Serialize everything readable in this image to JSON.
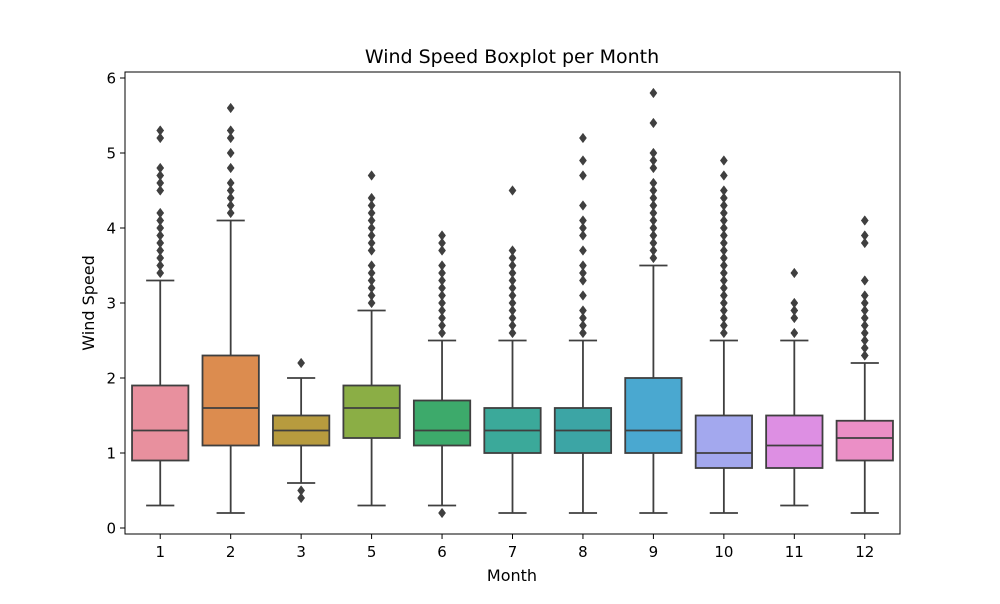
{
  "chart_data": {
    "type": "boxplot",
    "title": "Wind Speed Boxplot per Month",
    "xlabel": "Month",
    "ylabel": "Wind Speed",
    "ylim": [
      -0.08,
      6.08
    ],
    "yticks": [
      0,
      1,
      2,
      3,
      4,
      5,
      6
    ],
    "grid": false,
    "categories": [
      "1",
      "2",
      "3",
      "5",
      "6",
      "7",
      "8",
      "9",
      "10",
      "11",
      "12"
    ],
    "boxes": [
      {
        "category": "1",
        "color": "#E8909E",
        "whisker_low": 0.3,
        "q1": 0.9,
        "median": 1.3,
        "q3": 1.9,
        "whisker_high": 3.3,
        "outliers": [
          3.4,
          3.5,
          3.6,
          3.7,
          3.8,
          3.9,
          4.0,
          4.1,
          4.2,
          4.5,
          4.6,
          4.7,
          4.8,
          5.2,
          5.3
        ]
      },
      {
        "category": "2",
        "color": "#DC8C4F",
        "whisker_low": 0.2,
        "q1": 1.1,
        "median": 1.6,
        "q3": 2.3,
        "whisker_high": 4.1,
        "outliers": [
          4.2,
          4.3,
          4.4,
          4.5,
          4.6,
          4.8,
          5.0,
          5.2,
          5.3,
          5.6
        ]
      },
      {
        "category": "3",
        "color": "#B79B3E",
        "whisker_low": 0.6,
        "q1": 1.1,
        "median": 1.3,
        "q3": 1.5,
        "whisker_high": 2.0,
        "outliers": [
          0.4,
          0.5,
          2.2
        ]
      },
      {
        "category": "5",
        "color": "#8BAE45",
        "whisker_low": 0.3,
        "q1": 1.2,
        "median": 1.6,
        "q3": 1.9,
        "whisker_high": 2.9,
        "outliers": [
          3.0,
          3.1,
          3.2,
          3.3,
          3.4,
          3.5,
          3.7,
          3.8,
          3.9,
          4.0,
          4.1,
          4.2,
          4.3,
          4.4,
          4.7
        ]
      },
      {
        "category": "6",
        "color": "#3DAA6B",
        "whisker_low": 0.3,
        "q1": 1.1,
        "median": 1.3,
        "q3": 1.7,
        "whisker_high": 2.5,
        "outliers": [
          0.2,
          2.6,
          2.7,
          2.8,
          2.9,
          3.0,
          3.1,
          3.2,
          3.3,
          3.4,
          3.5,
          3.7,
          3.8,
          3.9
        ]
      },
      {
        "category": "7",
        "color": "#3BA99A",
        "whisker_low": 0.2,
        "q1": 1.0,
        "median": 1.3,
        "q3": 1.6,
        "whisker_high": 2.5,
        "outliers": [
          2.6,
          2.7,
          2.8,
          2.9,
          3.0,
          3.1,
          3.2,
          3.3,
          3.4,
          3.5,
          3.6,
          3.7,
          4.5
        ]
      },
      {
        "category": "8",
        "color": "#3CA5A5",
        "whisker_low": 0.2,
        "q1": 1.0,
        "median": 1.3,
        "q3": 1.6,
        "whisker_high": 2.5,
        "outliers": [
          2.6,
          2.7,
          2.8,
          2.9,
          3.1,
          3.3,
          3.4,
          3.5,
          3.7,
          3.9,
          4.0,
          4.1,
          4.3,
          4.7,
          4.9,
          5.2
        ]
      },
      {
        "category": "9",
        "color": "#4AA8D0",
        "whisker_low": 0.2,
        "q1": 1.0,
        "median": 1.3,
        "q3": 2.0,
        "whisker_high": 3.5,
        "outliers": [
          3.6,
          3.7,
          3.8,
          3.9,
          4.0,
          4.1,
          4.2,
          4.3,
          4.4,
          4.5,
          4.6,
          4.8,
          4.9,
          5.0,
          5.4,
          5.8
        ]
      },
      {
        "category": "10",
        "color": "#A3A8EE",
        "whisker_low": 0.2,
        "q1": 0.8,
        "median": 1.0,
        "q3": 1.5,
        "whisker_high": 2.5,
        "outliers": [
          2.6,
          2.7,
          2.8,
          2.9,
          3.0,
          3.1,
          3.2,
          3.3,
          3.4,
          3.5,
          3.6,
          3.7,
          3.8,
          3.9,
          4.0,
          4.1,
          4.2,
          4.3,
          4.4,
          4.5,
          4.7,
          4.9
        ]
      },
      {
        "category": "11",
        "color": "#DD8FE3",
        "whisker_low": 0.3,
        "q1": 0.8,
        "median": 1.1,
        "q3": 1.5,
        "whisker_high": 2.5,
        "outliers": [
          2.6,
          2.8,
          2.9,
          3.0,
          3.4
        ]
      },
      {
        "category": "12",
        "color": "#EB8FC6",
        "whisker_low": 0.2,
        "q1": 0.9,
        "median": 1.2,
        "q3": 1.43,
        "whisker_high": 2.2,
        "outliers": [
          2.3,
          2.4,
          2.5,
          2.6,
          2.7,
          2.8,
          2.9,
          3.0,
          3.1,
          3.3,
          3.8,
          3.9,
          4.1
        ]
      }
    ]
  }
}
